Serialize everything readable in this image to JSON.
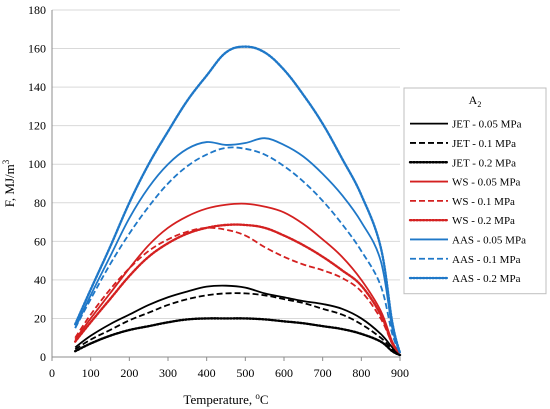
{
  "chart_data": {
    "type": "line",
    "xlabel": "Temperature, ",
    "xlabel_unit_sup": "o",
    "xlabel_unit": "C",
    "ylabel": "F, MJ/m",
    "ylabel_sup": "3",
    "xlim": [
      0,
      900
    ],
    "ylim": [
      0,
      180
    ],
    "xticks": [
      "0",
      "100",
      "200",
      "300",
      "400",
      "500",
      "600",
      "700",
      "800",
      "900"
    ],
    "yticks": [
      "0",
      "20",
      "40",
      "60",
      "80",
      "100",
      "120",
      "140",
      "160",
      "180"
    ],
    "grid": "horizontal",
    "legend_position": "right",
    "legend_title": "A",
    "legend_title_sub": "2",
    "colors": {
      "black": "#000000",
      "red": "#d42020",
      "blue": "#1f78c8",
      "grid": "#d9d9d9"
    },
    "series": [
      {
        "name": "JET - 0.05 MPa",
        "color": "#000000",
        "dash": "solid",
        "x": [
          60,
          100,
          150,
          200,
          250,
          300,
          350,
          400,
          450,
          500,
          550,
          600,
          650,
          700,
          750,
          800,
          850,
          880,
          900
        ],
        "y": [
          5,
          11,
          17,
          22,
          27,
          31,
          34,
          36.5,
          37,
          36,
          33,
          31,
          29,
          27.5,
          25,
          20,
          12,
          5,
          1
        ]
      },
      {
        "name": "JET - 0.1 MPa",
        "color": "#000000",
        "dash": "dashed",
        "x": [
          60,
          100,
          150,
          200,
          250,
          300,
          350,
          400,
          450,
          500,
          550,
          600,
          650,
          700,
          750,
          800,
          850,
          880,
          900
        ],
        "y": [
          4,
          9,
          14,
          19,
          23,
          27,
          30,
          32,
          33,
          33,
          32,
          30,
          28,
          25,
          22,
          17,
          10,
          4,
          1
        ]
      },
      {
        "name": "JET - 0.2 MPa",
        "color": "#000000",
        "dash": "dotted",
        "x": [
          60,
          100,
          150,
          200,
          250,
          300,
          350,
          400,
          450,
          500,
          550,
          600,
          650,
          700,
          750,
          800,
          850,
          880,
          900
        ],
        "y": [
          3,
          7,
          11,
          14,
          16,
          18,
          19.5,
          20,
          20,
          20,
          19.5,
          18.5,
          17.5,
          16,
          14.5,
          12,
          8,
          3,
          1
        ]
      },
      {
        "name": "WS - 0.05 MPa",
        "color": "#d42020",
        "dash": "solid",
        "x": [
          60,
          100,
          150,
          200,
          250,
          300,
          350,
          400,
          450,
          500,
          550,
          600,
          650,
          700,
          750,
          800,
          850,
          880,
          900
        ],
        "y": [
          9,
          20,
          33,
          46,
          58,
          67,
          73,
          77,
          79,
          79.5,
          78,
          75,
          69,
          61,
          52,
          40,
          24,
          8,
          2
        ]
      },
      {
        "name": "WS - 0.1 MPa",
        "color": "#d42020",
        "dash": "dashed",
        "x": [
          60,
          100,
          150,
          200,
          250,
          300,
          350,
          400,
          450,
          500,
          550,
          600,
          650,
          700,
          750,
          800,
          850,
          880,
          900
        ],
        "y": [
          10,
          22,
          35,
          46,
          55,
          61,
          65,
          67,
          66,
          63,
          57,
          52,
          48,
          45,
          41,
          34,
          20,
          7,
          2
        ]
      },
      {
        "name": "WS - 0.2 MPa",
        "color": "#d42020",
        "dash": "dotted",
        "x": [
          60,
          100,
          150,
          200,
          250,
          300,
          350,
          400,
          450,
          500,
          550,
          600,
          650,
          700,
          750,
          800,
          850,
          880,
          900
        ],
        "y": [
          8,
          18,
          30,
          42,
          52,
          59,
          64,
          67,
          68.5,
          68.5,
          67,
          63,
          58,
          52,
          45,
          37,
          22,
          7,
          2
        ]
      },
      {
        "name": "AAS - 0.05 MPa",
        "color": "#1f78c8",
        "dash": "solid",
        "x": [
          60,
          100,
          150,
          200,
          250,
          300,
          350,
          400,
          450,
          500,
          550,
          600,
          650,
          700,
          750,
          800,
          850,
          880,
          900
        ],
        "y": [
          15,
          32,
          52,
          72,
          88,
          100,
          108,
          111.5,
          110,
          111,
          113.5,
          110,
          104,
          95,
          84,
          70,
          50,
          15,
          2
        ]
      },
      {
        "name": "AAS - 0.1 MPa",
        "color": "#1f78c8",
        "dash": "dashed",
        "x": [
          60,
          100,
          150,
          200,
          250,
          300,
          350,
          400,
          450,
          500,
          550,
          600,
          650,
          700,
          750,
          800,
          850,
          880,
          900
        ],
        "y": [
          15,
          30,
          48,
          64,
          78,
          90,
          99,
          105,
          108.5,
          108,
          105,
          99,
          91,
          81,
          69,
          55,
          37,
          12,
          2
        ]
      },
      {
        "name": "AAS - 0.2 MPa",
        "color": "#1f78c8",
        "dash": "dotted",
        "x": [
          60,
          100,
          150,
          200,
          250,
          300,
          350,
          400,
          450,
          500,
          550,
          600,
          650,
          700,
          750,
          800,
          850,
          880,
          900
        ],
        "y": [
          17,
          35,
          57,
          80,
          100,
          117,
          133,
          146,
          158,
          161,
          158,
          149,
          136,
          121,
          103,
          84,
          57,
          18,
          2
        ]
      }
    ]
  }
}
